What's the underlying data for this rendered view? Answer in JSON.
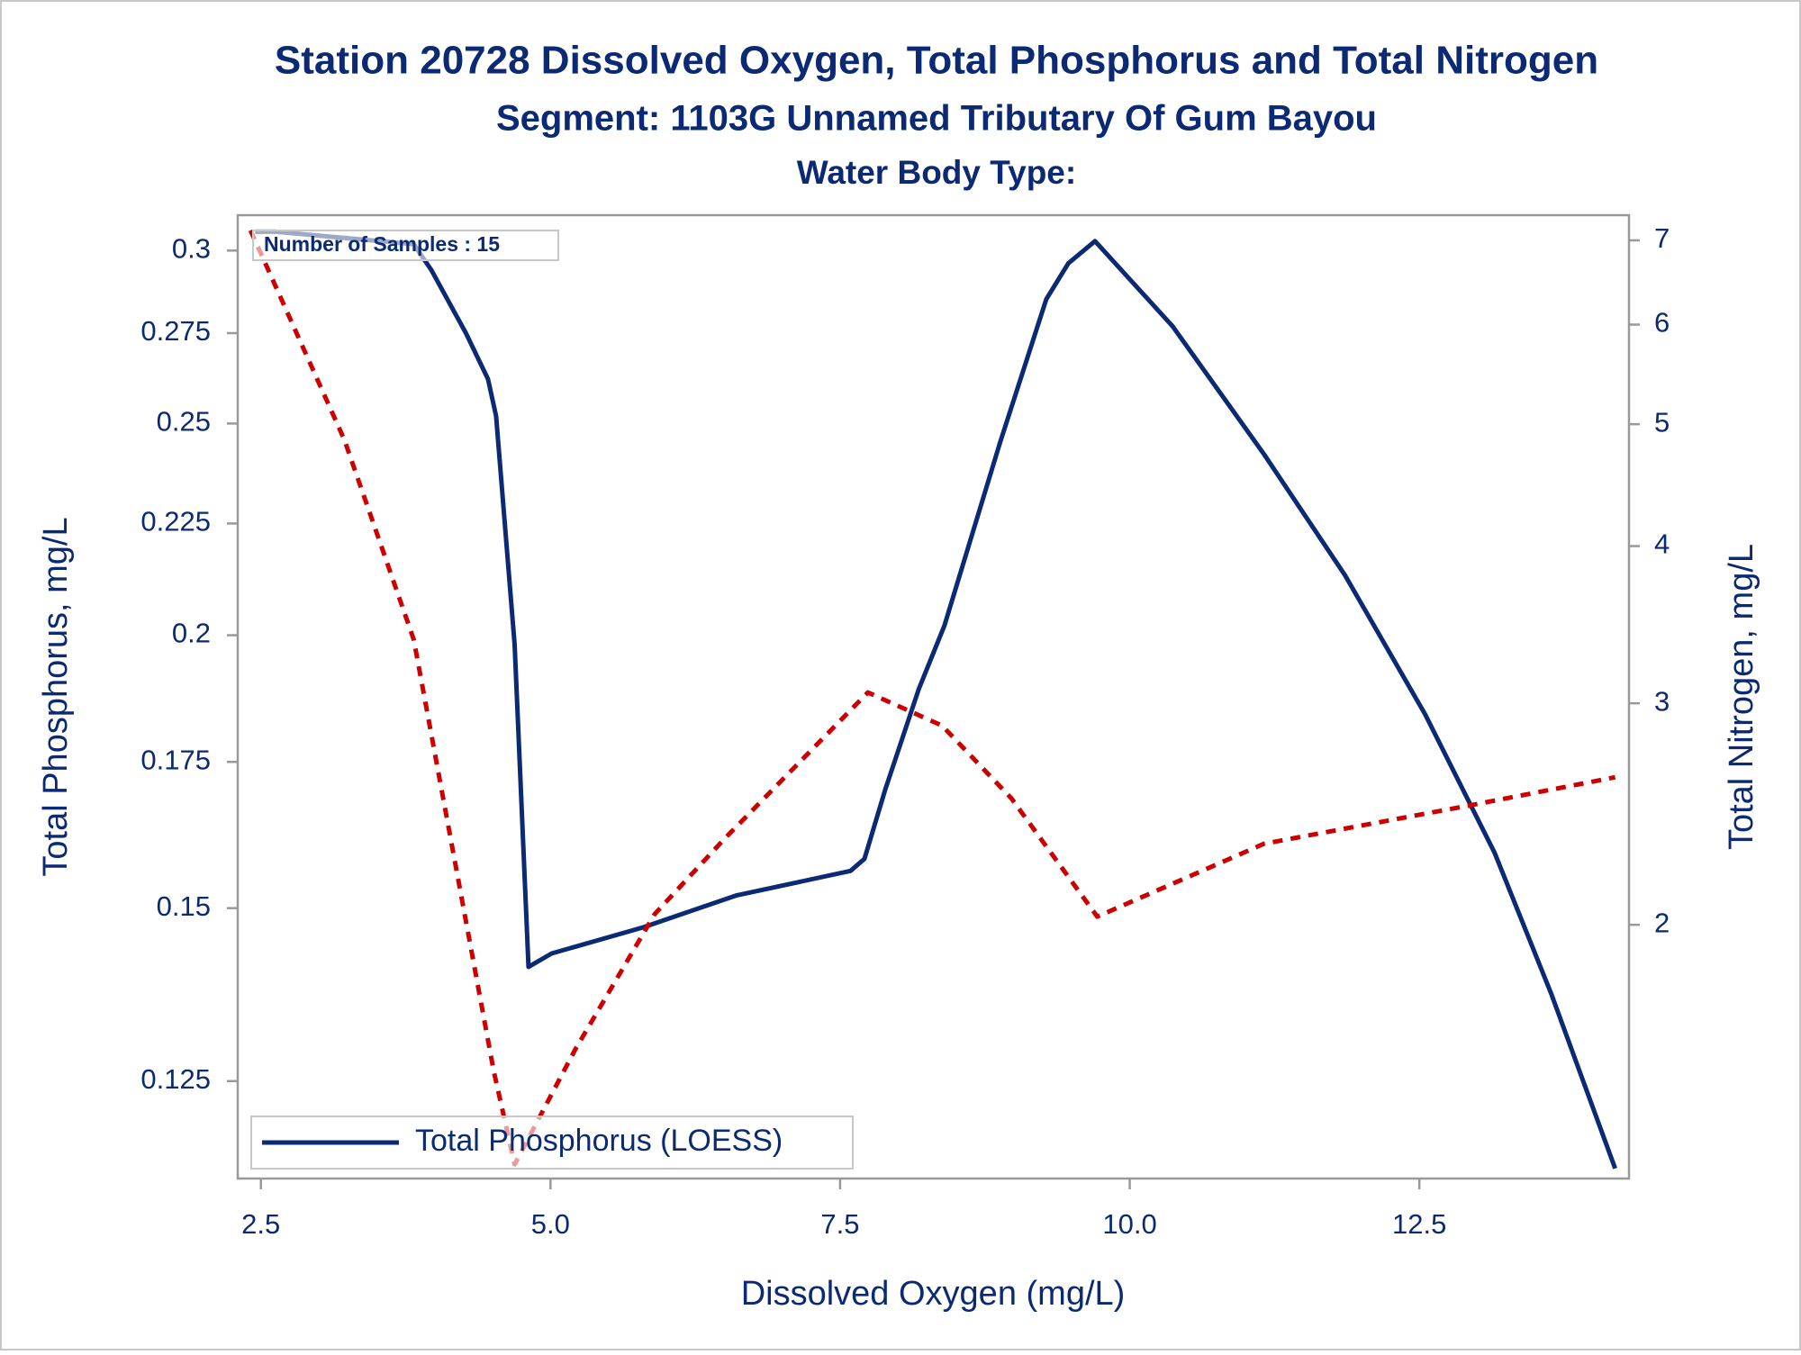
{
  "chart_data": {
    "type": "line",
    "title": "Station 20728  Dissolved Oxygen, Total Phosphorus and Total Nitrogen",
    "subtitle": "Segment: 1103G  Unnamed Tributary Of Gum Bayou",
    "subtitle2": "Water Body Type:",
    "annotation": "Number of Samples : 15",
    "x_label": "Dissolved Oxygen (mg/L)",
    "y_label": "Total Phosphorus, mg/L",
    "y2_label": "Total Nitrogen, mg/L",
    "xlim": [
      2.3,
      14.31
    ],
    "xticks": [
      2.5,
      {
        "value": 5,
        "label": "5.0"
      },
      7.5,
      {
        "value": 10,
        "label": "10.0"
      },
      12.5
    ],
    "ylim": [
      0.1128,
      0.3114
    ],
    "yticks": [
      0.125,
      0.15,
      0.175,
      0.2,
      0.225,
      0.25,
      0.275,
      0.3
    ],
    "y_log": true,
    "y2lim": [
      1.257,
      7.33
    ],
    "y2ticks": [
      2,
      3,
      4,
      5,
      6,
      7
    ],
    "y2_log": true,
    "grid": false,
    "legend": "lower left",
    "series": [
      {
        "name": "Total Phosphorus (LOESS)",
        "color": "#0b2a73",
        "dash": false,
        "axis": "y",
        "x": [
          2.45,
          2.63,
          3.22,
          3.82,
          3.97,
          4.27,
          4.46,
          4.53,
          4.69,
          4.81,
          5.01,
          5.8,
          6.6,
          7.59,
          7.71,
          7.89,
          8.18,
          8.4,
          8.88,
          9.28,
          9.47,
          9.7,
          10.37,
          11.16,
          11.86,
          12.55,
          13.15,
          13.64,
          14.19
        ],
        "values": [
          0.306,
          0.306,
          0.304,
          0.302,
          0.294,
          0.275,
          0.262,
          0.252,
          0.198,
          0.141,
          0.143,
          0.147,
          0.152,
          0.156,
          0.158,
          0.17,
          0.189,
          0.202,
          0.245,
          0.285,
          0.296,
          0.303,
          0.277,
          0.242,
          0.213,
          0.184,
          0.159,
          0.137,
          0.114
        ]
      },
      {
        "color": "#cc0000",
        "dash": true,
        "axis": "y2",
        "x": [
          2.41,
          3.22,
          3.82,
          4.51,
          4.69,
          5.21,
          5.9,
          6.5,
          7.74,
          8.38,
          8.98,
          9.72,
          11.16,
          12.95,
          14.19
        ],
        "values": [
          7.13,
          4.86,
          3.37,
          1.53,
          1.29,
          1.59,
          2.04,
          2.34,
          3.06,
          2.88,
          2.52,
          2.03,
          2.32,
          2.49,
          2.62
        ]
      }
    ]
  }
}
